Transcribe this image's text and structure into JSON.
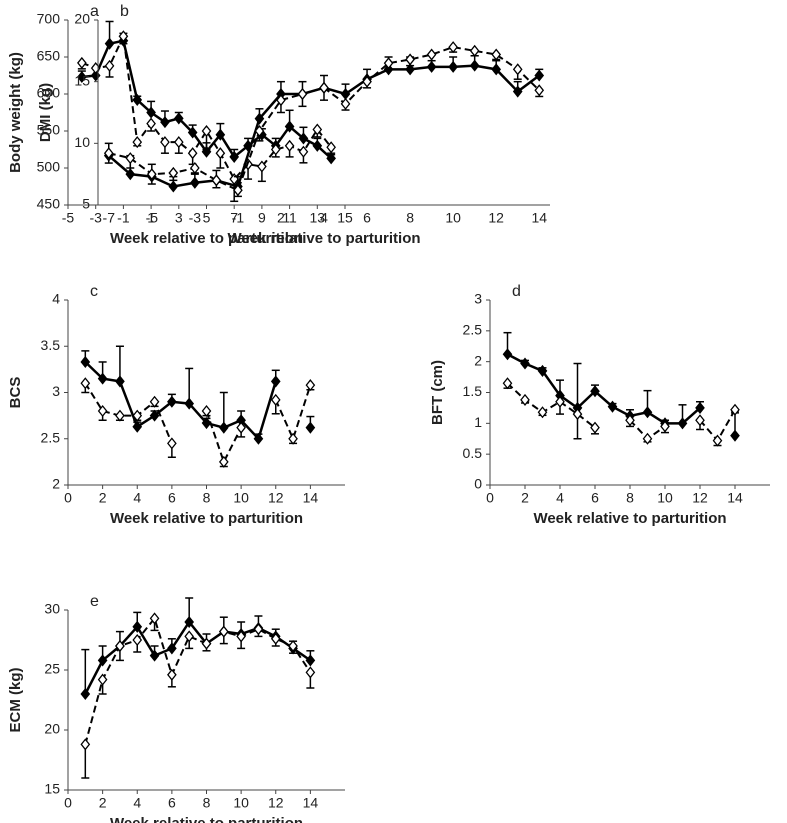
{
  "chart_data": [
    {
      "type": "line",
      "title": "a",
      "xlabel": "Week relative to parturition",
      "ylabel": "Body weight (kg)",
      "x": [
        -4,
        -3,
        -2,
        -1,
        0,
        1,
        2,
        3,
        4,
        5,
        6,
        7,
        8,
        9,
        10,
        11,
        12,
        13,
        14
      ],
      "xlim": [
        -5,
        15
      ],
      "xticks": [
        -5,
        -3,
        -1,
        1,
        3,
        5,
        7,
        9,
        11,
        13,
        15
      ],
      "ylim": [
        450,
        700
      ],
      "yticks": [
        450,
        500,
        550,
        600,
        650,
        700
      ],
      "series": [
        {
          "color": "#000000",
          "line_style": "solid",
          "marker_fill": "#000000",
          "error_direction": "up",
          "values": [
            623,
            625,
            668,
            672,
            592,
            575,
            562,
            567,
            548,
            522,
            545,
            515,
            530,
            545,
            530,
            556,
            540,
            530,
            513
          ],
          "errors": [
            8,
            10,
            30,
            10,
            5,
            15,
            15,
            8,
            10,
            12,
            15,
            10,
            10,
            8,
            10,
            22,
            15,
            10,
            5
          ]
        },
        {
          "color": "#000000",
          "line_style": "dashed",
          "marker_fill": "#ffffff",
          "error_direction": "down",
          "values": [
            642,
            635,
            638,
            678,
            535,
            560,
            535,
            535,
            520,
            550,
            520,
            485,
            505,
            502,
            525,
            530,
            522,
            552,
            528
          ],
          "errors": [
            8,
            10,
            15,
            10,
            5,
            10,
            15,
            15,
            15,
            25,
            20,
            30,
            20,
            20,
            10,
            15,
            15,
            10,
            8
          ]
        }
      ]
    },
    {
      "type": "line",
      "title": "b",
      "xlabel": "Week relative to parturition",
      "ylabel": "DMI (kg)",
      "categories": [
        "-7",
        null,
        "-5",
        null,
        "-3",
        null,
        "-1",
        null,
        "2",
        null,
        "4",
        null,
        "6",
        null,
        "8",
        null,
        "10",
        null,
        "12",
        null,
        "14"
      ],
      "ylim": [
        5,
        20
      ],
      "yticks": [
        5,
        10,
        15,
        20
      ],
      "series": [
        {
          "color": "#000000",
          "line_style": "solid",
          "marker_fill": "#000000",
          "error_direction": "up",
          "values": [
            9,
            7.5,
            7.3,
            6.5,
            6.8,
            7,
            6.5,
            12,
            14,
            14,
            14.5,
            14,
            15.2,
            16,
            16,
            16.2,
            16.2,
            16.3,
            16,
            14.2,
            15.5
          ],
          "errors": [
            1,
            1.5,
            1,
            0.8,
            0.8,
            0.8,
            0.8,
            0.8,
            1,
            1,
            1,
            0.8,
            0.8,
            1,
            1,
            1,
            0.8,
            0.8,
            0.8,
            0.8,
            0.5
          ]
        },
        {
          "color": "#000000",
          "line_style": "dashed",
          "marker_fill": "#ffffff",
          "error_direction": "down",
          "values": [
            9.2,
            8.8,
            7.5,
            7.6,
            8,
            7,
            6.2,
            11,
            13.5,
            14,
            14.5,
            13.2,
            15,
            16.5,
            16.8,
            17.2,
            17.8,
            17.5,
            17.2,
            16,
            14.3
          ],
          "errors": [
            0.8,
            0.8,
            0.8,
            0.6,
            0.5,
            0.6,
            0.5,
            0.8,
            1,
            1,
            1,
            0.5,
            0.5,
            0.5,
            0.5,
            0.5,
            0.4,
            0.4,
            0.5,
            0.8,
            0.5
          ]
        }
      ]
    },
    {
      "type": "line",
      "title": "c",
      "xlabel": "Week relative to parturition",
      "ylabel": "BCS",
      "x": [
        1,
        2,
        3,
        4,
        5,
        6,
        7,
        8,
        9,
        10,
        11,
        12,
        13,
        14
      ],
      "xlim": [
        0,
        16
      ],
      "xticks": [
        0,
        2,
        4,
        6,
        8,
        10,
        12,
        14
      ],
      "ylim": [
        2,
        4
      ],
      "yticks": [
        2,
        2.5,
        3,
        3.5,
        4
      ],
      "series": [
        {
          "color": "#000000",
          "line_style": "solid",
          "marker_fill": "#000000",
          "error_direction": "up",
          "values": [
            3.33,
            3.15,
            3.12,
            2.63,
            2.75,
            2.9,
            2.88,
            2.67,
            2.62,
            2.7,
            2.5,
            3.12,
            null,
            2.62
          ],
          "errors": [
            0.12,
            0.18,
            0.38,
            0.05,
            0.05,
            0.08,
            0.38,
            0.05,
            0.38,
            0.1,
            0.05,
            0.12,
            null,
            0.12
          ]
        },
        {
          "color": "#000000",
          "line_style": "dashed",
          "marker_fill": "#ffffff",
          "error_direction": "down",
          "values": [
            3.1,
            2.8,
            2.75,
            2.75,
            2.9,
            2.45,
            null,
            2.8,
            2.25,
            2.62,
            null,
            2.92,
            2.5,
            3.08
          ],
          "errors": [
            0.1,
            0.1,
            0.05,
            0.05,
            0.05,
            0.15,
            null,
            0.05,
            0.05,
            0.1,
            null,
            0.15,
            0.05,
            0.05
          ]
        }
      ]
    },
    {
      "type": "line",
      "title": "d",
      "xlabel": "Week relative to parturition",
      "ylabel": "BFT (cm)",
      "x": [
        1,
        2,
        3,
        4,
        5,
        6,
        7,
        8,
        9,
        10,
        11,
        12,
        13,
        14
      ],
      "xlim": [
        0,
        16
      ],
      "xticks": [
        0,
        2,
        4,
        6,
        8,
        10,
        12,
        14
      ],
      "ylim": [
        0,
        3
      ],
      "yticks": [
        0,
        0.5,
        1,
        1.5,
        2,
        2.5,
        3
      ],
      "series": [
        {
          "color": "#000000",
          "line_style": "solid",
          "marker_fill": "#000000",
          "error_direction": "up",
          "values": [
            2.12,
            1.97,
            1.85,
            1.45,
            1.25,
            1.52,
            1.27,
            1.12,
            1.18,
            1.0,
            1.0,
            1.25,
            null,
            0.8
          ],
          "errors": [
            0.35,
            0.05,
            0.05,
            0.25,
            0.72,
            0.1,
            0.05,
            0.1,
            0.35,
            0.05,
            0.3,
            0.1,
            null,
            0.4
          ]
        },
        {
          "color": "#000000",
          "line_style": "dashed",
          "marker_fill": "#ffffff",
          "error_direction": "down",
          "values": [
            1.65,
            1.38,
            1.18,
            1.35,
            1.15,
            0.93,
            null,
            1.05,
            0.75,
            0.95,
            null,
            1.05,
            0.72,
            1.22
          ],
          "errors": [
            0.08,
            0.05,
            0.05,
            0.2,
            0.4,
            0.1,
            null,
            0.1,
            0.05,
            0.1,
            null,
            0.15,
            0.08,
            0.05
          ]
        }
      ]
    },
    {
      "type": "line",
      "title": "e",
      "xlabel": "Week relative to parturition",
      "ylabel": "ECM (kg)",
      "x": [
        1,
        2,
        3,
        4,
        5,
        6,
        7,
        8,
        9,
        10,
        11,
        12,
        13,
        14
      ],
      "xlim": [
        0,
        16
      ],
      "xticks": [
        0,
        2,
        4,
        6,
        8,
        10,
        12,
        14
      ],
      "ylim": [
        15,
        30
      ],
      "yticks": [
        15,
        20,
        25,
        30
      ],
      "series": [
        {
          "color": "#000000",
          "line_style": "solid",
          "marker_fill": "#000000",
          "error_direction": "up",
          "values": [
            23,
            25.8,
            27,
            28.6,
            26.2,
            26.8,
            29,
            27.2,
            28.2,
            28,
            28.5,
            27.8,
            26.8,
            25.8
          ],
          "errors": [
            3.7,
            1.2,
            1.2,
            1.2,
            0.8,
            0.8,
            2,
            0.8,
            1.2,
            1,
            1,
            0.6,
            0.6,
            0.8
          ]
        },
        {
          "color": "#000000",
          "line_style": "dashed",
          "marker_fill": "#ffffff",
          "error_direction": "down",
          "values": [
            18.8,
            24.2,
            27,
            27.5,
            29.3,
            24.6,
            27.8,
            27.2,
            28.2,
            27.8,
            28.4,
            27.6,
            27,
            24.8
          ],
          "errors": [
            2.8,
            1.2,
            1.2,
            1,
            1,
            1,
            1,
            0.6,
            1,
            1,
            0.6,
            0.6,
            0.6,
            1.3
          ]
        }
      ]
    }
  ]
}
